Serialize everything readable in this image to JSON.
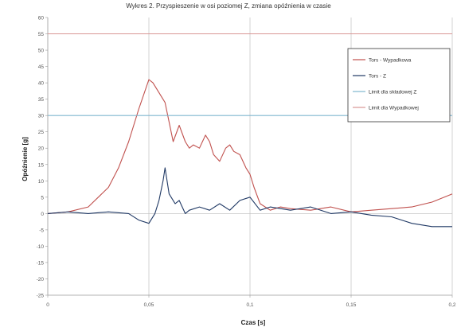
{
  "header": {
    "caption": "Wykres 2. Przyspieszenie w osi poziomej Z, zmiana opóźnienia w czasie"
  },
  "chart_data": {
    "type": "line",
    "title": "",
    "xlabel": "Czas [s]",
    "ylabel": "Opóźnienie [g]",
    "xlim": [
      0,
      0.2
    ],
    "ylim": [
      -25,
      60
    ],
    "x_ticks": [
      0,
      0.05,
      0.1,
      0.15,
      0.2
    ],
    "x_tick_labels": [
      "0",
      "0,05",
      "0,1",
      "0,15",
      "0,2"
    ],
    "y_ticks": [
      -25,
      -20,
      -15,
      -10,
      -5,
      0,
      5,
      10,
      15,
      20,
      25,
      30,
      35,
      40,
      45,
      50,
      55,
      60
    ],
    "y_tick_labels": [
      "-25",
      "-20",
      "-15",
      "-10",
      "-5",
      "0",
      "5",
      "10",
      "15",
      "20",
      "25",
      "30",
      "35",
      "40",
      "45",
      "50",
      "55",
      "60"
    ],
    "grid": "vertical lines at major x ticks",
    "legend": {
      "placement": "top-right",
      "entries": [
        "Tors - Wypadkowa",
        "Tors - Z",
        "Limit dla składowej Z",
        "Limit dla Wypadkowej"
      ]
    },
    "series": [
      {
        "name": "Tors - Wypadkowa",
        "color": "#c0504d",
        "x": [
          0,
          0.01,
          0.02,
          0.03,
          0.035,
          0.04,
          0.045,
          0.05,
          0.052,
          0.055,
          0.058,
          0.06,
          0.062,
          0.065,
          0.068,
          0.07,
          0.072,
          0.075,
          0.078,
          0.08,
          0.082,
          0.085,
          0.088,
          0.09,
          0.092,
          0.095,
          0.098,
          0.1,
          0.102,
          0.105,
          0.11,
          0.115,
          0.12,
          0.13,
          0.14,
          0.15,
          0.16,
          0.17,
          0.18,
          0.19,
          0.2
        ],
        "y": [
          0,
          0.5,
          2,
          8,
          14,
          22,
          32,
          41,
          40,
          37,
          34,
          28,
          22,
          27,
          22,
          20,
          21,
          20,
          24,
          22,
          18,
          16,
          20,
          21,
          19,
          18,
          14,
          12,
          8,
          3,
          1,
          2,
          1.5,
          1,
          2,
          0.5,
          1,
          1.5,
          2,
          3.5,
          6
        ]
      },
      {
        "name": "Tors - Z",
        "color": "#1f3864",
        "x": [
          0,
          0.01,
          0.02,
          0.03,
          0.04,
          0.045,
          0.05,
          0.053,
          0.055,
          0.057,
          0.058,
          0.06,
          0.063,
          0.065,
          0.068,
          0.07,
          0.075,
          0.08,
          0.085,
          0.09,
          0.095,
          0.1,
          0.105,
          0.11,
          0.12,
          0.13,
          0.14,
          0.15,
          0.16,
          0.17,
          0.18,
          0.19,
          0.2
        ],
        "y": [
          0,
          0.5,
          0,
          0.5,
          0,
          -2,
          -3,
          0,
          4,
          10,
          14,
          6,
          3,
          4,
          0,
          1,
          2,
          1,
          3,
          1,
          4,
          5,
          1,
          2,
          1,
          2,
          0,
          0.5,
          -0.5,
          -1,
          -3,
          -4,
          -4
        ]
      },
      {
        "name": "Limit dla składowej Z",
        "color": "#7fb6cf",
        "x": [
          0,
          0.2
        ],
        "y": [
          30,
          30
        ]
      },
      {
        "name": "Limit dla Wypadkowej",
        "color": "#d99694",
        "x": [
          0,
          0.2
        ],
        "y": [
          55,
          55
        ]
      }
    ]
  }
}
